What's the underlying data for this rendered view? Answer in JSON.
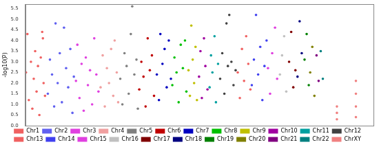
{
  "chart_data": {
    "type": "scatter",
    "y_label": "-log10(P)",
    "xlim": [
      0,
      495
    ],
    "ylim": [
      0,
      5.7
    ],
    "yticks": [
      {
        "value": 0,
        "label": "0.0"
      },
      {
        "value": 0.5,
        "label": "0.5"
      },
      {
        "value": 1,
        "label": "1.0"
      },
      {
        "value": 1.5,
        "label": "1.5"
      },
      {
        "value": 2,
        "label": "2.0"
      },
      {
        "value": 2.5,
        "label": "2.5"
      },
      {
        "value": 3,
        "label": "3.0"
      },
      {
        "value": 3.5,
        "label": "3.5"
      },
      {
        "value": 4,
        "label": "4.0"
      },
      {
        "value": 4.5,
        "label": "4.5"
      },
      {
        "value": 5,
        "label": "5.0"
      },
      {
        "value": 5.5,
        "label": "5.5"
      }
    ],
    "grid": false,
    "legend": "bottom",
    "tick_labels": "y",
    "marker": "circle",
    "series": [
      {
        "name": "Chr1",
        "color": "#f06060",
        "x": [
          1,
          3,
          5,
          8,
          10,
          12,
          14,
          16,
          18,
          20,
          22,
          24,
          25,
          26,
          28
        ],
        "values": [
          2.5,
          4.3,
          1.2,
          3.0,
          0.8,
          2.2,
          3.5,
          1.6,
          2.8,
          0.5,
          3.2,
          4.4,
          4.1,
          2.0,
          1.4
        ]
      },
      {
        "name": "Chr2",
        "color": "#6060f0",
        "x": [
          32,
          35,
          38,
          41,
          43,
          46,
          49,
          52,
          55,
          58,
          61,
          64,
          67,
          69
        ],
        "values": [
          1.5,
          3.1,
          2.4,
          0.9,
          4.8,
          2.0,
          3.4,
          1.1,
          4.6,
          2.7,
          1.8,
          3.6,
          0.6,
          2.3
        ]
      },
      {
        "name": "Chr3",
        "color": "#e040e0",
        "x": [
          72,
          74,
          77,
          80,
          83,
          86,
          89,
          92,
          95,
          98,
          101,
          104
        ],
        "values": [
          2.1,
          3.8,
          1.3,
          2.9,
          0.7,
          3.2,
          1.9,
          2.6,
          1.0,
          4.1,
          2.4,
          1.6
        ]
      },
      {
        "name": "Chr4",
        "color": "#f0a0a0",
        "x": [
          107,
          110,
          113,
          116,
          119,
          122,
          125,
          127,
          130,
          132
        ],
        "values": [
          1.8,
          3.3,
          0.9,
          2.7,
          2.0,
          3.6,
          1.4,
          4.0,
          2.5,
          1.1
        ]
      },
      {
        "name": "Chr5",
        "color": "#808080",
        "x": [
          135,
          138,
          141,
          144,
          147,
          150,
          152,
          155,
          158,
          160
        ],
        "values": [
          2.2,
          1.0,
          3.4,
          2.8,
          1.5,
          4.3,
          5.6,
          2.4,
          3.1,
          0.8
        ]
      },
      {
        "name": "Chr6",
        "color": "#c00000",
        "x": [
          162,
          165,
          168,
          171,
          174,
          177,
          180,
          183
        ],
        "values": [
          1.7,
          3.0,
          2.3,
          0.9,
          4.1,
          2.6,
          3.3,
          1.4
        ]
      },
      {
        "name": "Chr7",
        "color": "#0000c0",
        "x": [
          187,
          190,
          192,
          195,
          198,
          201,
          204,
          207
        ],
        "values": [
          2.4,
          1.2,
          4.3,
          2.9,
          3.6,
          1.8,
          4.0,
          2.2
        ]
      },
      {
        "name": "Chr8",
        "color": "#00c000",
        "x": [
          209,
          212,
          215,
          218,
          221,
          224,
          227,
          229
        ],
        "values": [
          1.9,
          3.2,
          2.5,
          1.1,
          3.8,
          2.7,
          4.0,
          1.6
        ]
      },
      {
        "name": "Chr9",
        "color": "#c0c000",
        "x": [
          232,
          234,
          236,
          238,
          240,
          242,
          244
        ],
        "values": [
          2.6,
          1.4,
          4.7,
          3.1,
          2.0,
          3.7,
          1.2
        ]
      },
      {
        "name": "Chr10",
        "color": "#a000a0",
        "x": [
          247,
          249,
          251,
          254,
          256,
          259
        ],
        "values": [
          2.3,
          3.5,
          1.3,
          4.1,
          2.8,
          1.7
        ]
      },
      {
        "name": "Chr11",
        "color": "#00a0a0",
        "x": [
          262,
          264,
          266,
          269,
          271,
          274
        ],
        "values": [
          1.8,
          3.3,
          2.5,
          4.2,
          1.1,
          2.9
        ]
      },
      {
        "name": "Chr12",
        "color": "#404040",
        "x": [
          277,
          280,
          283,
          286,
          288,
          290,
          293,
          296,
          299
        ],
        "values": [
          2.2,
          3.4,
          1.5,
          4.8,
          2.8,
          5.2,
          3.0,
          1.9,
          2.6
        ]
      },
      {
        "name": "Chr13",
        "color": "#f06060",
        "x": [
          302,
          305,
          308,
          311,
          314,
          317,
          320
        ],
        "values": [
          2.5,
          1.3,
          3.6,
          2.1,
          4.2,
          2.9,
          1.7
        ]
      },
      {
        "name": "Chr14",
        "color": "#4040f0",
        "x": [
          322,
          325,
          328,
          331,
          334,
          337,
          340,
          343
        ],
        "values": [
          1.9,
          3.1,
          5.2,
          2.4,
          3.7,
          1.2,
          2.8,
          4.0
        ]
      },
      {
        "name": "Chr15",
        "color": "#e040e0",
        "x": [
          345,
          348,
          351,
          355,
          358
        ],
        "values": [
          2.7,
          1.5,
          3.4,
          4.6,
          2.2
        ]
      },
      {
        "name": "Chr16",
        "color": "#c0c0c0",
        "x": [
          362,
          365,
          368,
          371
        ],
        "values": [
          2.4,
          3.3,
          4.2,
          1.6
        ]
      },
      {
        "name": "Chr17",
        "color": "#800000",
        "x": [
          375,
          378,
          381,
          384
        ],
        "values": [
          3.0,
          4.4,
          1.8,
          2.6
        ]
      },
      {
        "name": "Chr18",
        "color": "#000080",
        "x": [
          387,
          390,
          393
        ],
        "values": [
          2.3,
          4.9,
          3.4
        ]
      },
      {
        "name": "Chr19",
        "color": "#008000",
        "x": [
          397,
          400,
          403
        ],
        "values": [
          3.1,
          4.3,
          1.9
        ]
      },
      {
        "name": "Chr20",
        "color": "#808000",
        "x": [
          405,
          408,
          411
        ],
        "values": [
          2.5,
          3.7,
          1.4
        ]
      },
      {
        "name": "Chr21",
        "color": "#800080",
        "x": [
          414,
          417
        ],
        "values": [
          3.3,
          2.1
        ]
      },
      {
        "name": "Chr22",
        "color": "#008080",
        "x": [
          420,
          423
        ],
        "values": [
          3.5,
          2.2
        ]
      },
      {
        "name": "ChrXY",
        "color": "#f08080",
        "x": [
          443,
          443,
          443,
          470,
          470,
          470,
          470
        ],
        "values": [
          0.3,
          0.6,
          0.9,
          0.4,
          0.9,
          1.5,
          2.1
        ]
      }
    ]
  }
}
